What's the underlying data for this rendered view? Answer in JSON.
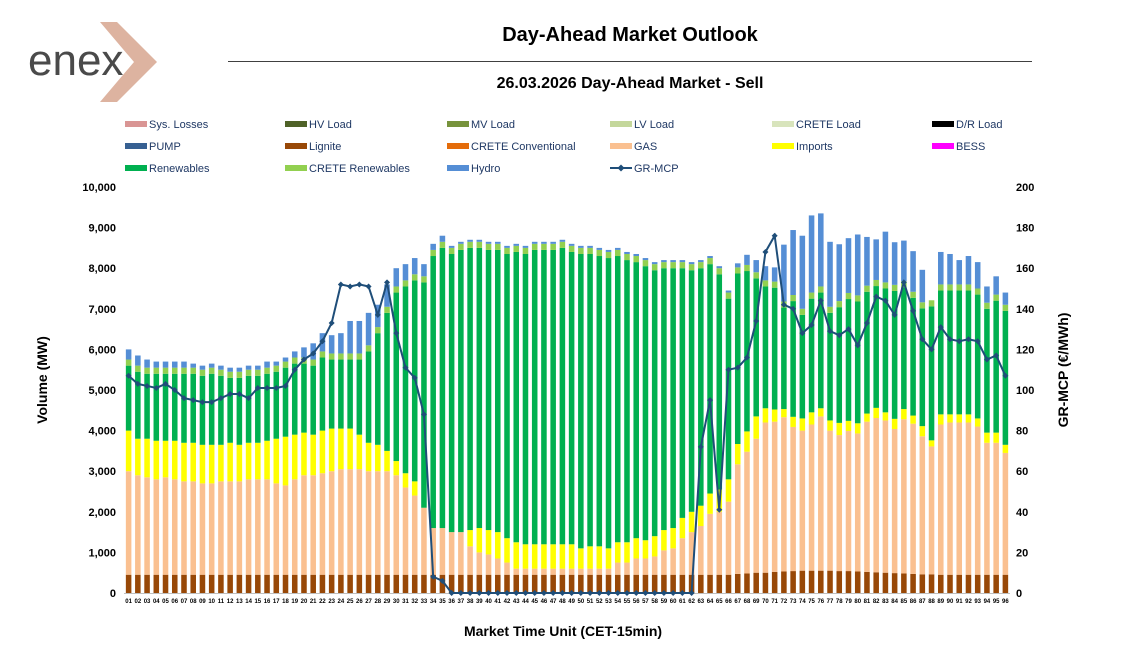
{
  "header": {
    "logo_text": "enex",
    "title": "Day-Ahead Market Outlook",
    "subtitle": "26.03.2026  Day-Ahead Market - Sell"
  },
  "legend": [
    {
      "label": "Sys. Losses",
      "color": "#d99594",
      "kind": "box"
    },
    {
      "label": "HV Load",
      "color": "#4f6228",
      "kind": "box"
    },
    {
      "label": "MV Load",
      "color": "#77933c",
      "kind": "box"
    },
    {
      "label": "LV Load",
      "color": "#c4d79b",
      "kind": "box"
    },
    {
      "label": "CRETE Load",
      "color": "#d8e4bc",
      "kind": "box"
    },
    {
      "label": "D/R Load",
      "color": "#000000",
      "kind": "box"
    },
    {
      "label": "PUMP",
      "color": "#376092",
      "kind": "box"
    },
    {
      "label": "Lignite",
      "color": "#984807",
      "kind": "box"
    },
    {
      "label": "CRETE Conventional",
      "color": "#e46c0a",
      "kind": "box"
    },
    {
      "label": "GAS",
      "color": "#fac090",
      "kind": "box"
    },
    {
      "label": "Imports",
      "color": "#ffff00",
      "kind": "box"
    },
    {
      "label": "BESS",
      "color": "#ff00ff",
      "kind": "box"
    },
    {
      "label": "Renewables",
      "color": "#00b050",
      "kind": "box"
    },
    {
      "label": "CRETE Renewables",
      "color": "#92d050",
      "kind": "box"
    },
    {
      "label": "Hydro",
      "color": "#558ed5",
      "kind": "box"
    },
    {
      "label": "GR-MCP",
      "color": "#1f4e79",
      "kind": "line"
    }
  ],
  "chart_data": {
    "type": "bar",
    "stacked": true,
    "title": "26.03.2026  Day-Ahead Market - Sell",
    "xlabel": "Market Time Unit (CET-15min)",
    "ylabel": "Volume (MW)",
    "y2label": "GR-MCP (€/MWh)",
    "ylim": [
      0,
      10000
    ],
    "y2lim": [
      0,
      200
    ],
    "yticks": [
      "0",
      "1,000",
      "2,000",
      "3,000",
      "4,000",
      "5,000",
      "6,000",
      "7,000",
      "8,000",
      "9,000",
      "10,000"
    ],
    "y2ticks": [
      "0",
      "20",
      "40",
      "60",
      "80",
      "100",
      "120",
      "140",
      "160",
      "180",
      "200"
    ],
    "categories": [
      "01",
      "02",
      "03",
      "04",
      "05",
      "06",
      "07",
      "08",
      "09",
      "10",
      "11",
      "12",
      "13",
      "14",
      "15",
      "16",
      "17",
      "18",
      "19",
      "20",
      "21",
      "22",
      "23",
      "24",
      "25",
      "26",
      "27",
      "28",
      "29",
      "30",
      "31",
      "32",
      "33",
      "34",
      "35",
      "36",
      "37",
      "38",
      "39",
      "40",
      "41",
      "42",
      "43",
      "44",
      "45",
      "46",
      "47",
      "48",
      "49",
      "50",
      "51",
      "52",
      "53",
      "54",
      "55",
      "56",
      "57",
      "58",
      "59",
      "60",
      "61",
      "62",
      "63",
      "64",
      "65",
      "66",
      "67",
      "68",
      "69",
      "70",
      "71",
      "72",
      "73",
      "74",
      "75",
      "76",
      "77",
      "78",
      "79",
      "80",
      "81",
      "82",
      "83",
      "84",
      "85",
      "86",
      "87",
      "88",
      "89",
      "90",
      "91",
      "92",
      "93",
      "94",
      "95",
      "96"
    ],
    "series": [
      {
        "name": "Lignite",
        "color": "#984807",
        "values": [
          450,
          450,
          450,
          450,
          450,
          450,
          450,
          450,
          450,
          450,
          450,
          450,
          450,
          450,
          450,
          450,
          450,
          450,
          450,
          450,
          450,
          450,
          450,
          450,
          450,
          450,
          450,
          450,
          450,
          450,
          450,
          450,
          450,
          450,
          450,
          450,
          450,
          450,
          450,
          450,
          450,
          450,
          450,
          450,
          450,
          450,
          450,
          450,
          450,
          450,
          450,
          450,
          450,
          450,
          450,
          450,
          450,
          450,
          450,
          450,
          450,
          450,
          450,
          450,
          450,
          450,
          470,
          480,
          500,
          500,
          520,
          530,
          540,
          550,
          550,
          550,
          550,
          540,
          540,
          530,
          520,
          510,
          500,
          490,
          480,
          470,
          460,
          460,
          450,
          450,
          450,
          450,
          450,
          450,
          450,
          450
        ]
      },
      {
        "name": "GAS",
        "color": "#fac090",
        "values": [
          2550,
          2450,
          2400,
          2350,
          2400,
          2350,
          2300,
          2300,
          2250,
          2250,
          2300,
          2300,
          2300,
          2350,
          2350,
          2350,
          2250,
          2200,
          2350,
          2450,
          2450,
          2500,
          2550,
          2600,
          2600,
          2600,
          2550,
          2550,
          2550,
          2450,
          2150,
          1950,
          1650,
          1150,
          1150,
          1050,
          1050,
          700,
          550,
          500,
          400,
          300,
          150,
          150,
          150,
          150,
          150,
          150,
          150,
          150,
          150,
          150,
          150,
          300,
          300,
          400,
          400,
          450,
          600,
          650,
          900,
          1050,
          1200,
          1500,
          1550,
          1800,
          2700,
          3000,
          3300,
          3700,
          3700,
          3800,
          3550,
          3450,
          3600,
          3800,
          3450,
          3350,
          3450,
          3400,
          3700,
          3800,
          3750,
          3550,
          3800,
          3700,
          3400,
          3150,
          3700,
          3750,
          3750,
          3750,
          3650,
          3250,
          3250,
          3000
        ]
      },
      {
        "name": "Imports",
        "color": "#ffff00",
        "values": [
          1000,
          900,
          950,
          950,
          900,
          950,
          950,
          950,
          950,
          950,
          900,
          950,
          900,
          900,
          900,
          950,
          1100,
          1200,
          1100,
          1050,
          1000,
          1050,
          1050,
          1000,
          1000,
          850,
          700,
          650,
          500,
          350,
          350,
          350,
          0,
          0,
          0,
          0,
          0,
          400,
          600,
          600,
          650,
          600,
          650,
          600,
          600,
          600,
          600,
          600,
          600,
          500,
          550,
          550,
          500,
          500,
          500,
          500,
          450,
          500,
          500,
          500,
          500,
          500,
          500,
          500,
          550,
          550,
          500,
          500,
          550,
          350,
          300,
          200,
          250,
          300,
          300,
          200,
          250,
          300,
          250,
          250,
          200,
          250,
          200,
          250,
          250,
          200,
          250,
          150,
          250,
          200,
          200,
          200,
          200,
          250,
          250,
          200
        ]
      },
      {
        "name": "Renewables",
        "color": "#00b050",
        "values": [
          1600,
          1650,
          1600,
          1650,
          1650,
          1650,
          1700,
          1700,
          1700,
          1750,
          1700,
          1600,
          1650,
          1650,
          1650,
          1650,
          1650,
          1700,
          1750,
          1700,
          1700,
          1800,
          1700,
          1700,
          1700,
          1850,
          2250,
          2750,
          3400,
          4150,
          4600,
          4950,
          5550,
          6700,
          6900,
          6850,
          6950,
          6950,
          6900,
          6900,
          6950,
          7000,
          7150,
          7150,
          7250,
          7250,
          7250,
          7300,
          7200,
          7250,
          7200,
          7150,
          7150,
          7050,
          6950,
          6800,
          6750,
          6550,
          6450,
          6400,
          6150,
          5950,
          5850,
          5650,
          5300,
          4450,
          4200,
          3950,
          3400,
          3000,
          3000,
          2500,
          2850,
          2550,
          2800,
          2850,
          2650,
          2850,
          3000,
          3000,
          3000,
          3000,
          3050,
          3150,
          3000,
          2900,
          2900,
          3300,
          3050,
          3050,
          3050,
          3050,
          3050,
          3050,
          3250,
          3300
        ]
      },
      {
        "name": "CRETE Renewables",
        "color": "#92d050",
        "values": [
          150,
          150,
          150,
          150,
          150,
          150,
          150,
          150,
          150,
          150,
          150,
          150,
          150,
          150,
          150,
          150,
          150,
          150,
          150,
          150,
          150,
          150,
          150,
          150,
          150,
          150,
          150,
          150,
          150,
          150,
          150,
          150,
          150,
          150,
          150,
          150,
          150,
          150,
          150,
          150,
          150,
          150,
          150,
          150,
          150,
          150,
          150,
          150,
          150,
          150,
          150,
          150,
          150,
          150,
          150,
          150,
          150,
          150,
          150,
          150,
          150,
          150,
          150,
          150,
          150,
          150,
          150,
          150,
          150,
          150,
          150,
          150,
          150,
          150,
          150,
          150,
          150,
          150,
          150,
          150,
          150,
          150,
          150,
          150,
          150,
          150,
          150,
          150,
          150,
          150,
          150,
          150,
          150,
          150,
          150,
          150
        ]
      },
      {
        "name": "Hydro",
        "color": "#558ed5",
        "values": [
          250,
          250,
          200,
          150,
          150,
          150,
          150,
          100,
          100,
          100,
          100,
          100,
          100,
          100,
          100,
          150,
          100,
          100,
          150,
          250,
          400,
          450,
          450,
          500,
          800,
          800,
          800,
          550,
          550,
          450,
          400,
          400,
          300,
          150,
          150,
          50,
          50,
          50,
          50,
          50,
          50,
          50,
          50,
          50,
          50,
          50,
          50,
          50,
          50,
          50,
          50,
          50,
          50,
          50,
          50,
          50,
          50,
          50,
          50,
          50,
          50,
          50,
          50,
          50,
          50,
          50,
          100,
          250,
          300,
          350,
          350,
          1400,
          1600,
          1800,
          1900,
          1800,
          1600,
          1400,
          1350,
          1500,
          1200,
          1000,
          1250,
          1050,
          1000,
          1000,
          800,
          0,
          800,
          750,
          600,
          700,
          650,
          400,
          450,
          300
        ]
      },
      {
        "name": "GR-MCP",
        "color": "#1f4e79",
        "axis": "right",
        "values": [
          107,
          103,
          102,
          101,
          103,
          100,
          96,
          95,
          94,
          94,
          96,
          98,
          98,
          96,
          101,
          101,
          101,
          102,
          110,
          115,
          118,
          124,
          133,
          152,
          151,
          152,
          151,
          137,
          153,
          128,
          111,
          106,
          88,
          8,
          6,
          0,
          0,
          0,
          0,
          0,
          0,
          0,
          0,
          0,
          0,
          0,
          0,
          0,
          0,
          0,
          0,
          0,
          0,
          0,
          0,
          0,
          0,
          0,
          0,
          0,
          0,
          0,
          72,
          95,
          41,
          110,
          111,
          116,
          134,
          168,
          176,
          142,
          140,
          128,
          132,
          144,
          129,
          127,
          130,
          122,
          133,
          146,
          144,
          137,
          153,
          139,
          125,
          120,
          131,
          125,
          124,
          125,
          124,
          115,
          117,
          107
        ]
      }
    ]
  }
}
